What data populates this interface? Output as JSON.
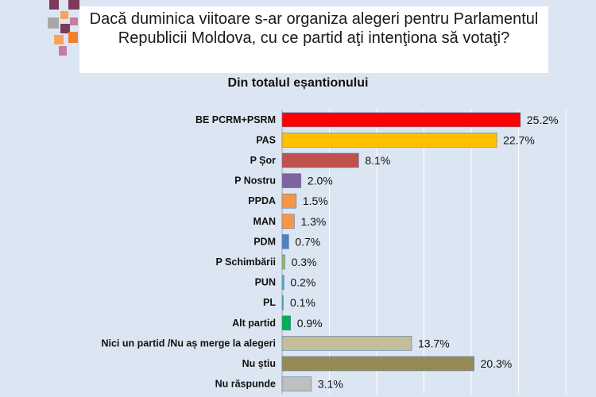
{
  "chart_data": {
    "type": "bar",
    "orientation": "horizontal",
    "title": "Dacă duminica viitoare s-ar organiza alegeri pentru Parlamentul Republicii Moldova, cu ce partid aţi intenţiona să votaţi?",
    "subtitle": "Din totalul eșantionului",
    "categories": [
      "BE PCRM+PSRM",
      "PAS",
      "P Șor",
      "P Nostru",
      "PPDA",
      "MAN",
      "PDM",
      "P Schimbării",
      "PUN",
      "PL",
      "Alt partid",
      "Nici un partid /Nu aș merge la alegeri",
      "Nu știu",
      "Nu răspunde"
    ],
    "values": [
      25.2,
      22.7,
      8.1,
      2.0,
      1.5,
      1.3,
      0.7,
      0.3,
      0.2,
      0.1,
      0.9,
      13.7,
      20.3,
      3.1
    ],
    "value_labels": [
      "25.2%",
      "22.7%",
      "8.1%",
      "2.0%",
      "1.5%",
      "1.3%",
      "0.7%",
      "0.3%",
      "0.2%",
      "0.1%",
      "0.9%",
      "13.7%",
      "20.3%",
      "3.1%"
    ],
    "colors": [
      "#ff0000",
      "#ffc000",
      "#c0504d",
      "#8064a2",
      "#f79646",
      "#f79646",
      "#4f81bd",
      "#9bbb59",
      "#4bacc6",
      "#4bacc6",
      "#00b050",
      "#c4bd97",
      "#948a54",
      "#bfbfbf"
    ],
    "xlim": [
      0,
      30
    ],
    "grid": true,
    "xlabel": "",
    "ylabel": ""
  }
}
